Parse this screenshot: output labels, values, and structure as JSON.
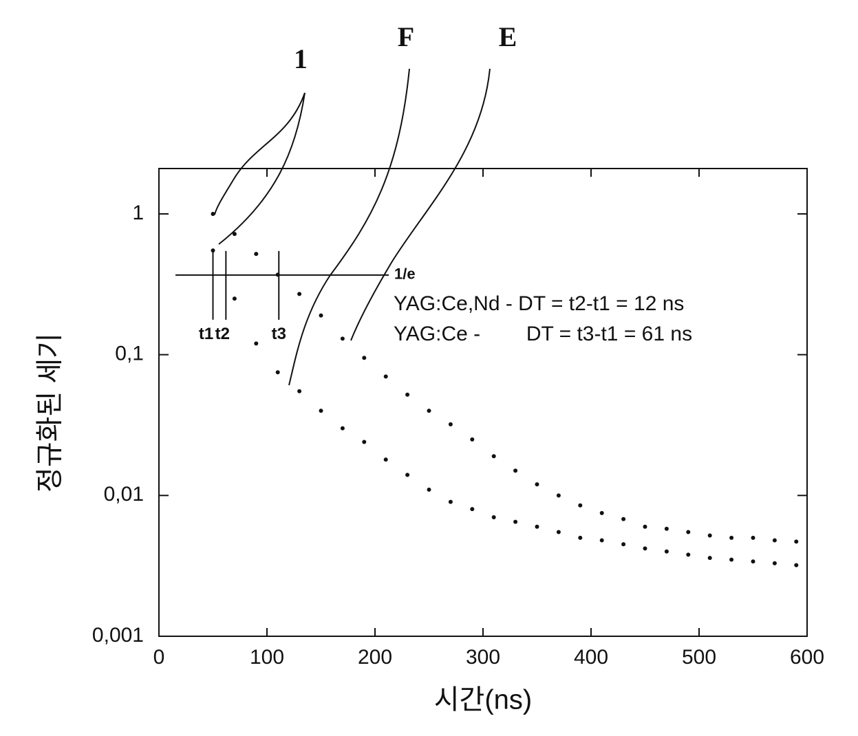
{
  "chart_data": {
    "type": "scatter",
    "x_label": "시간(ns)",
    "y_label": "정규화된 세기",
    "xlim": [
      0,
      600
    ],
    "xticks": [
      0,
      100,
      200,
      300,
      400,
      500,
      600
    ],
    "ylim": [
      0.001,
      2.1
    ],
    "yscale": "log",
    "yticks": [
      {
        "value": 0.001,
        "label": "0,001"
      },
      {
        "value": 0.01,
        "label": "0,01"
      },
      {
        "value": 0.1,
        "label": "0,1"
      },
      1
    ],
    "x": [
      50,
      70,
      90,
      110,
      130,
      150,
      170,
      190,
      210,
      230,
      250,
      270,
      290,
      310,
      330,
      350,
      370,
      390,
      410,
      430,
      450,
      470,
      490,
      510,
      530,
      550,
      570,
      590
    ],
    "series": [
      {
        "name": "E",
        "color": "#111111",
        "values": [
          1,
          0.72,
          0.52,
          0.37,
          0.27,
          0.19,
          0.13,
          0.095,
          0.07,
          0.052,
          0.04,
          0.032,
          0.025,
          0.019,
          0.015,
          0.012,
          0.01,
          0.0085,
          0.0075,
          0.0068,
          0.006,
          0.0058,
          0.0055,
          0.0052,
          0.005,
          0.005,
          0.0048,
          0.0047
        ]
      },
      {
        "name": "F",
        "color": "#111111",
        "values": [
          0.55,
          0.25,
          0.12,
          0.075,
          0.055,
          0.04,
          0.03,
          0.024,
          0.018,
          0.014,
          0.011,
          0.009,
          0.008,
          0.007,
          0.0065,
          0.006,
          0.0055,
          0.005,
          0.0048,
          0.0045,
          0.0042,
          0.004,
          0.0038,
          0.0036,
          0.0035,
          0.0034,
          0.0033,
          0.0032
        ]
      }
    ],
    "marker_label": "1",
    "e_line": {
      "label": "1/e",
      "y": 0.368
    },
    "t_markers": [
      {
        "label": "t1",
        "x": 50
      },
      {
        "label": "t2",
        "x": 62
      },
      {
        "label": "t3",
        "x": 111
      }
    ],
    "notes": [
      "YAG:Ce,Nd - DT = t2-t1 = 12 ns",
      "YAG:Ce -        DT = t3-t1 = 61 ns"
    ]
  }
}
